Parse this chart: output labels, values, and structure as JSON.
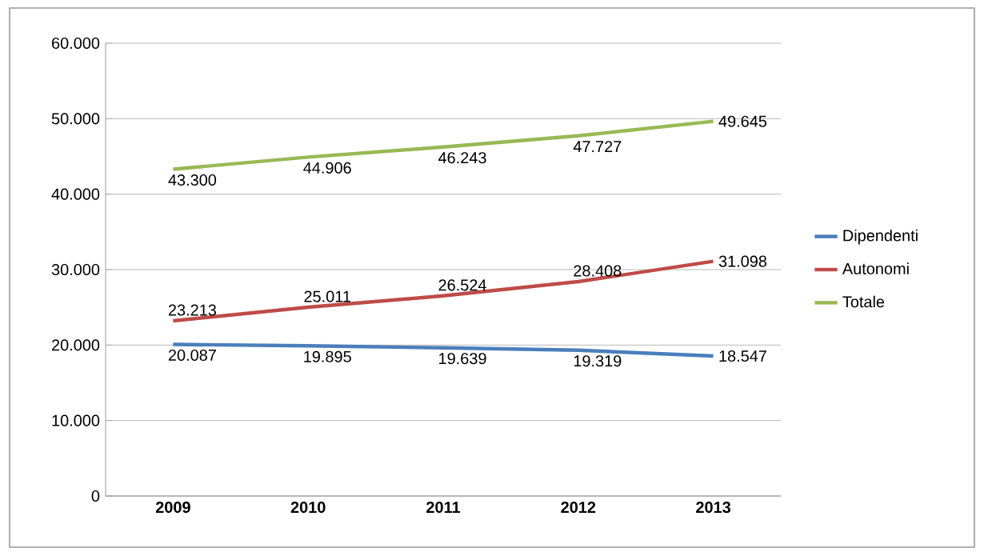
{
  "chart_data": {
    "type": "line",
    "categories": [
      "2009",
      "2010",
      "2011",
      "2012",
      "2013"
    ],
    "series": [
      {
        "name": "Dipendenti",
        "color": "#4a7ebb",
        "values": [
          20087,
          19895,
          19639,
          19319,
          18547
        ],
        "value_labels": [
          "20.087",
          "19.895",
          "19.639",
          "19.319",
          "18.547"
        ]
      },
      {
        "name": "Autonomi",
        "color": "#be4b48",
        "values": [
          23213,
          25011,
          26524,
          28408,
          31098
        ],
        "value_labels": [
          "23.213",
          "25.011",
          "26.524",
          "28.408",
          "31.098"
        ]
      },
      {
        "name": "Totale",
        "color": "#98b954",
        "values": [
          43300,
          44906,
          46243,
          47727,
          49645
        ],
        "value_labels": [
          "43.300",
          "44.906",
          "46.243",
          "47.727",
          "49.645"
        ]
      }
    ],
    "ylim": [
      0,
      60000
    ],
    "yticks": [
      {
        "value": 0,
        "label": "0"
      },
      {
        "value": 10000,
        "label": "10.000"
      },
      {
        "value": 20000,
        "label": "20.000"
      },
      {
        "value": 30000,
        "label": "30.000"
      },
      {
        "value": 40000,
        "label": "40.000"
      },
      {
        "value": 50000,
        "label": "50.000"
      },
      {
        "value": 60000,
        "label": "60.000"
      }
    ],
    "grid": "y",
    "legend": "right",
    "marker": "none",
    "line_style": "solid"
  }
}
